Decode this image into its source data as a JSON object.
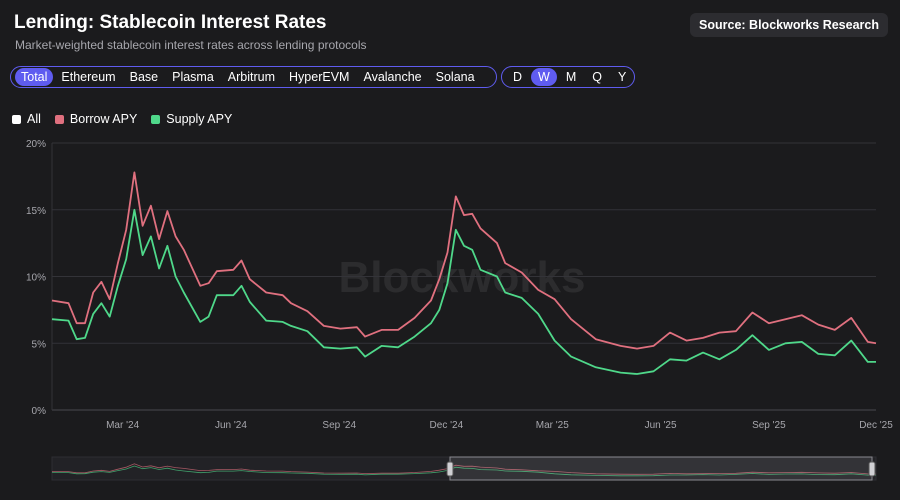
{
  "header": {
    "title": "Lending: Stablecoin Interest Rates",
    "subtitle": "Market-weighted stablecoin interest rates across lending protocols",
    "source": "Source: Blockworks Research"
  },
  "networks": [
    "Total",
    "Ethereum",
    "Base",
    "Plasma",
    "Arbitrum",
    "HyperEVM",
    "Avalanche",
    "Solana"
  ],
  "intervals": [
    "D",
    "W",
    "M",
    "Q",
    "Y"
  ],
  "selected_network": "Total",
  "selected_interval": "W",
  "watermark": "Blockworks",
  "colors": {
    "accent": "#5f5cf0",
    "borrow": "#e0707f",
    "supply": "#4fd88a",
    "all": "#ffffff"
  },
  "legend": [
    {
      "label": "All",
      "color": "#ffffff"
    },
    {
      "label": "Borrow APY",
      "color": "#e0707f"
    },
    {
      "label": "Supply APY",
      "color": "#4fd88a"
    }
  ],
  "chart_data": {
    "type": "line",
    "x_ticks": [
      "Mar '24",
      "Jun '24",
      "Sep '24",
      "Dec '24",
      "Mar '25",
      "Jun '25",
      "Sep '25",
      "Dec '25"
    ],
    "y_ticks": [
      "0%",
      "5%",
      "10%",
      "15%",
      "20%"
    ],
    "ylim": [
      0,
      20
    ],
    "grid": true,
    "x_start": "2024-01-01",
    "x_end": "2025-12-01",
    "series": [
      {
        "name": "Borrow APY",
        "points": [
          [
            "2024-01-01",
            8.2
          ],
          [
            "2024-01-15",
            8.0
          ],
          [
            "2024-01-22",
            6.5
          ],
          [
            "2024-01-29",
            6.5
          ],
          [
            "2024-02-05",
            8.8
          ],
          [
            "2024-02-12",
            9.6
          ],
          [
            "2024-02-19",
            8.3
          ],
          [
            "2024-02-26",
            11.0
          ],
          [
            "2024-03-04",
            13.5
          ],
          [
            "2024-03-11",
            17.8
          ],
          [
            "2024-03-18",
            13.8
          ],
          [
            "2024-03-25",
            15.3
          ],
          [
            "2024-04-01",
            12.8
          ],
          [
            "2024-04-08",
            14.9
          ],
          [
            "2024-04-15",
            13.0
          ],
          [
            "2024-04-22",
            12.0
          ],
          [
            "2024-05-06",
            9.3
          ],
          [
            "2024-05-13",
            9.5
          ],
          [
            "2024-05-20",
            10.4
          ],
          [
            "2024-06-03",
            10.5
          ],
          [
            "2024-06-10",
            11.2
          ],
          [
            "2024-06-17",
            9.8
          ],
          [
            "2024-07-01",
            8.8
          ],
          [
            "2024-07-15",
            8.6
          ],
          [
            "2024-07-22",
            8.0
          ],
          [
            "2024-08-05",
            7.4
          ],
          [
            "2024-08-19",
            6.3
          ],
          [
            "2024-09-02",
            6.1
          ],
          [
            "2024-09-16",
            6.2
          ],
          [
            "2024-09-23",
            5.5
          ],
          [
            "2024-10-07",
            6.0
          ],
          [
            "2024-10-21",
            6.0
          ],
          [
            "2024-11-04",
            6.9
          ],
          [
            "2024-11-18",
            8.2
          ],
          [
            "2024-11-25",
            9.8
          ],
          [
            "2024-12-02",
            11.8
          ],
          [
            "2024-12-09",
            16.0
          ],
          [
            "2024-12-16",
            14.6
          ],
          [
            "2024-12-23",
            14.7
          ],
          [
            "2024-12-30",
            13.6
          ],
          [
            "2025-01-13",
            12.5
          ],
          [
            "2025-01-20",
            11.0
          ],
          [
            "2025-02-03",
            10.3
          ],
          [
            "2025-02-17",
            9.0
          ],
          [
            "2025-03-03",
            8.3
          ],
          [
            "2025-03-17",
            6.8
          ],
          [
            "2025-04-07",
            5.3
          ],
          [
            "2025-04-28",
            4.8
          ],
          [
            "2025-05-12",
            4.6
          ],
          [
            "2025-05-26",
            4.8
          ],
          [
            "2025-06-09",
            5.8
          ],
          [
            "2025-06-23",
            5.2
          ],
          [
            "2025-07-07",
            5.4
          ],
          [
            "2025-07-21",
            5.8
          ],
          [
            "2025-08-04",
            5.9
          ],
          [
            "2025-08-18",
            7.3
          ],
          [
            "2025-09-01",
            6.5
          ],
          [
            "2025-09-15",
            6.8
          ],
          [
            "2025-09-29",
            7.1
          ],
          [
            "2025-10-13",
            6.4
          ],
          [
            "2025-10-27",
            6.0
          ],
          [
            "2025-11-10",
            6.9
          ],
          [
            "2025-11-24",
            5.1
          ],
          [
            "2025-12-01",
            5.0
          ]
        ]
      },
      {
        "name": "Supply APY",
        "points": [
          [
            "2024-01-01",
            6.8
          ],
          [
            "2024-01-15",
            6.7
          ],
          [
            "2024-01-22",
            5.3
          ],
          [
            "2024-01-29",
            5.4
          ],
          [
            "2024-02-05",
            7.2
          ],
          [
            "2024-02-12",
            8.0
          ],
          [
            "2024-02-19",
            7.0
          ],
          [
            "2024-02-26",
            9.3
          ],
          [
            "2024-03-04",
            11.3
          ],
          [
            "2024-03-11",
            15.0
          ],
          [
            "2024-03-18",
            11.6
          ],
          [
            "2024-03-25",
            13.0
          ],
          [
            "2024-04-01",
            10.6
          ],
          [
            "2024-04-08",
            12.3
          ],
          [
            "2024-04-15",
            10.0
          ],
          [
            "2024-04-22",
            8.8
          ],
          [
            "2024-05-06",
            6.6
          ],
          [
            "2024-05-13",
            7.0
          ],
          [
            "2024-05-20",
            8.6
          ],
          [
            "2024-06-03",
            8.6
          ],
          [
            "2024-06-10",
            9.3
          ],
          [
            "2024-06-17",
            8.1
          ],
          [
            "2024-07-01",
            6.7
          ],
          [
            "2024-07-15",
            6.6
          ],
          [
            "2024-07-22",
            6.3
          ],
          [
            "2024-08-05",
            5.9
          ],
          [
            "2024-08-19",
            4.7
          ],
          [
            "2024-09-02",
            4.6
          ],
          [
            "2024-09-16",
            4.7
          ],
          [
            "2024-09-23",
            4.0
          ],
          [
            "2024-10-07",
            4.8
          ],
          [
            "2024-10-21",
            4.7
          ],
          [
            "2024-11-04",
            5.5
          ],
          [
            "2024-11-18",
            6.5
          ],
          [
            "2024-11-25",
            7.5
          ],
          [
            "2024-12-02",
            9.5
          ],
          [
            "2024-12-09",
            13.5
          ],
          [
            "2024-12-16",
            12.3
          ],
          [
            "2024-12-23",
            12.0
          ],
          [
            "2024-12-30",
            10.5
          ],
          [
            "2025-01-13",
            10.0
          ],
          [
            "2025-01-20",
            8.8
          ],
          [
            "2025-02-03",
            8.4
          ],
          [
            "2025-02-17",
            7.2
          ],
          [
            "2025-03-03",
            5.2
          ],
          [
            "2025-03-17",
            4.0
          ],
          [
            "2025-04-07",
            3.2
          ],
          [
            "2025-04-28",
            2.8
          ],
          [
            "2025-05-12",
            2.7
          ],
          [
            "2025-05-26",
            2.9
          ],
          [
            "2025-06-09",
            3.8
          ],
          [
            "2025-06-23",
            3.7
          ],
          [
            "2025-07-07",
            4.3
          ],
          [
            "2025-07-21",
            3.8
          ],
          [
            "2025-08-04",
            4.5
          ],
          [
            "2025-08-18",
            5.6
          ],
          [
            "2025-09-01",
            4.5
          ],
          [
            "2025-09-15",
            5.0
          ],
          [
            "2025-09-29",
            5.1
          ],
          [
            "2025-10-13",
            4.2
          ],
          [
            "2025-10-27",
            4.1
          ],
          [
            "2025-11-10",
            5.2
          ],
          [
            "2025-11-24",
            3.6
          ],
          [
            "2025-12-01",
            3.6
          ]
        ]
      }
    ]
  }
}
